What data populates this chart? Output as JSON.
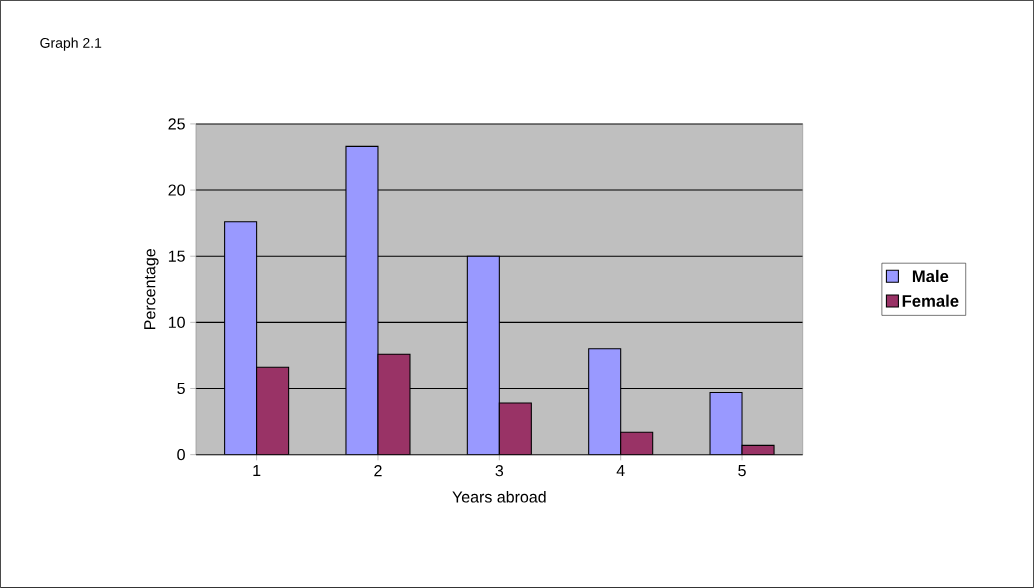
{
  "chart_data": {
    "type": "bar",
    "title": "Graph 2.1",
    "xlabel": "Years abroad",
    "ylabel": "Percentage",
    "categories": [
      "1",
      "2",
      "3",
      "4",
      "5"
    ],
    "series": [
      {
        "name": "Male",
        "color": "#9999ff",
        "values": [
          17.6,
          23.3,
          15.0,
          8.0,
          4.7
        ]
      },
      {
        "name": "Female",
        "color": "#993366",
        "values": [
          6.6,
          7.6,
          3.9,
          1.7,
          0.7
        ]
      }
    ],
    "ylim": [
      0,
      25
    ],
    "yticks": [
      0,
      5,
      10,
      15,
      20,
      25
    ],
    "grid": "y",
    "legend": "right"
  }
}
